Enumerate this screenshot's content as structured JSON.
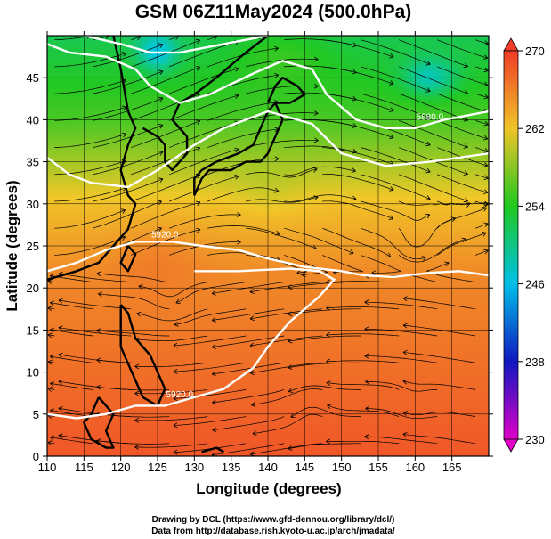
{
  "chart_data": {
    "type": "heatmap",
    "title": "GSM 06Z11May2024 (500.0hPa)",
    "xlabel": "Longitude (degrees)",
    "ylabel": "Latitude  (degrees)",
    "xlim": [
      110,
      170
    ],
    "ylim": [
      0,
      50
    ],
    "x_ticks": [
      "110",
      "115",
      "120",
      "125",
      "130",
      "135",
      "140",
      "145",
      "150",
      "155",
      "160",
      "165"
    ],
    "y_ticks": [
      "0",
      "5",
      "10",
      "15",
      "20",
      "25",
      "30",
      "35",
      "40",
      "45"
    ],
    "colorbar": {
      "range": [
        230,
        270
      ],
      "ticks": [
        "230",
        "238",
        "246",
        "254",
        "262",
        "270"
      ],
      "colors": [
        "#e000c8",
        "#0020c8",
        "#00c8e0",
        "#22c822",
        "#f0c828",
        "#f03c28"
      ]
    },
    "contour_labels": [
      "5880.0",
      "5920.0",
      "5920.0"
    ],
    "grid": true,
    "vectors": "streamlines"
  },
  "credits": {
    "line1": "Drawing by DCL (https://www.gfd-dennou.org/library/dcl/)",
    "line2": "Data from http://database.rish.kyoto-u.ac.jp/arch/jmadata/"
  }
}
